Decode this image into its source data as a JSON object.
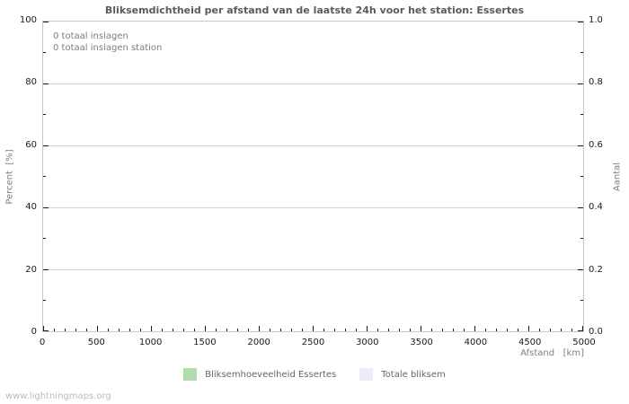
{
  "title": "Bliksemdichtheid per afstand van de laatste 24h voor het station: Essertes",
  "watermark": "www.lightningmaps.org",
  "plot": {
    "annotations": [
      "0 totaal inslagen",
      "0 totaal inslagen station"
    ]
  },
  "axes": {
    "x": {
      "label": "Afstand   [km]",
      "ticks": [
        "0",
        "500",
        "1000",
        "1500",
        "2000",
        "2500",
        "3000",
        "3500",
        "4000",
        "4500",
        "5000"
      ],
      "minor_divisions_per_major": 5
    },
    "y_left": {
      "label": "Percent  [%]",
      "ticks": [
        "100",
        "80",
        "60",
        "40",
        "20",
        "0"
      ],
      "minor_divisions_per_major": 2
    },
    "y_right": {
      "label": "Aantal",
      "ticks": [
        "1.0",
        "0.8",
        "0.6",
        "0.4",
        "0.2",
        "0.0"
      ],
      "minor_divisions_per_major": 2
    }
  },
  "legend": {
    "items": [
      {
        "label": "Bliksemhoeveelheid Essertes",
        "color": "#b0dcb0"
      },
      {
        "label": "Totale bliksem",
        "color": "#ebecfa"
      }
    ]
  },
  "colors": {
    "background": "#ffffff",
    "title": "#5a5a5a",
    "border": "#c8c8c8",
    "grid": "#d2d2d2",
    "tick": "#1a1a1a",
    "tick_label": "#1a1a1a",
    "axis_label": "#808080",
    "annotation": "#7d7d7d",
    "watermark": "#bbbbbb"
  },
  "chart_data": {
    "type": "bar",
    "title": "Bliksemdichtheid per afstand van de laatste 24h voor het station: Essertes",
    "xlabel": "Afstand [km]",
    "ylabel": "Percent [%]",
    "ylabel_right": "Aantal",
    "xlim": [
      0,
      5000
    ],
    "ylim": [
      0,
      100
    ],
    "ylim_right": [
      0.0,
      1.0
    ],
    "x_tick_values": [
      0,
      500,
      1000,
      1500,
      2000,
      2500,
      3000,
      3500,
      4000,
      4500,
      5000
    ],
    "y_tick_values_left": [
      0,
      20,
      40,
      60,
      80,
      100
    ],
    "y_tick_values_right": [
      0.0,
      0.2,
      0.4,
      0.6,
      0.8,
      1.0
    ],
    "grid": true,
    "legend_position": "bottom-center",
    "series": [
      {
        "name": "Bliksemhoeveelheid Essertes",
        "color": "#b0dcb0",
        "x": [],
        "values": []
      },
      {
        "name": "Totale bliksem",
        "color": "#ebecfa",
        "x": [],
        "values": []
      }
    ],
    "annotations": [
      "0 totaal inslagen",
      "0 totaal inslagen station"
    ]
  }
}
